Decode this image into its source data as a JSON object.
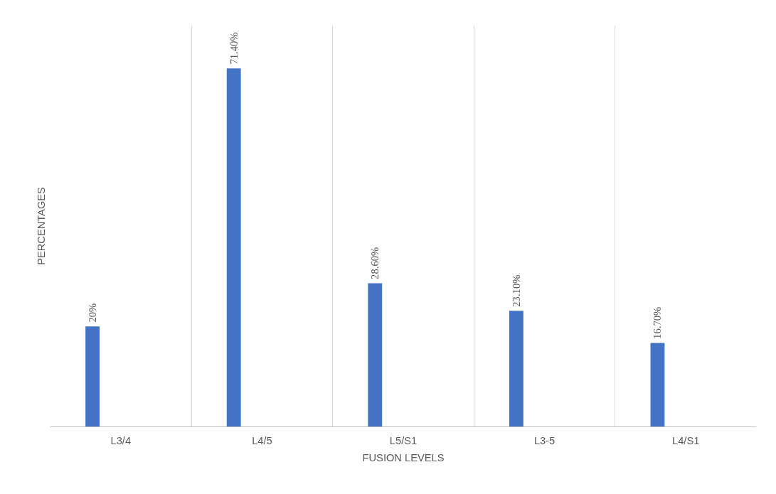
{
  "chart_data": {
    "type": "bar",
    "xlabel": "FUSION LEVELS",
    "ylabel": "PERCENTAGES",
    "categories": [
      "L3/4",
      "L4/5",
      "L5/S1",
      "L3-5",
      "L4/S1"
    ],
    "values": [
      20,
      71.4,
      28.6,
      23.1,
      16.7
    ],
    "value_labels": [
      "20%",
      "71.40%",
      "28.60%",
      "23.10%",
      "16.70%"
    ],
    "color": "#4472c4",
    "ylim": [
      0,
      80
    ],
    "grid": "x"
  }
}
